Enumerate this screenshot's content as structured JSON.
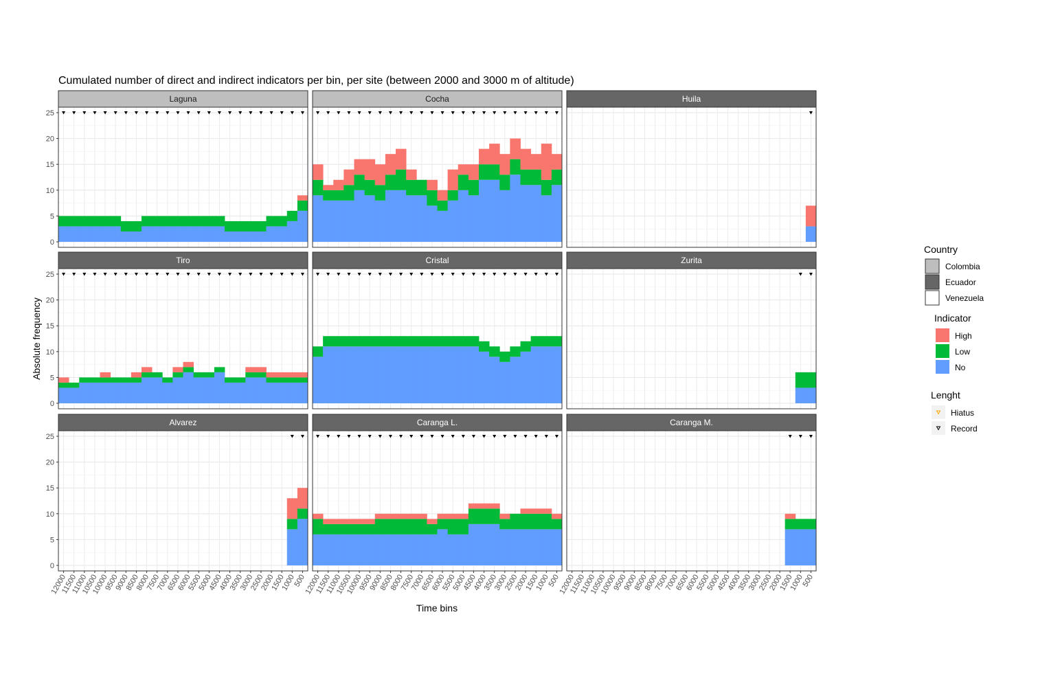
{
  "chart_data": {
    "type": "bar",
    "stacked": true,
    "facets_layout": "3x3",
    "title": "Cumulated number of direct and indirect indicators per bin, per site (between 2000 and 3000 m of altitude)",
    "xlabel": "Time bins",
    "ylabel": "Absolute frequency",
    "ylim": [
      0,
      25
    ],
    "yticks": [
      0,
      5,
      10,
      15,
      20,
      25
    ],
    "x_categories": [
      "12000",
      "11500",
      "11000",
      "10500",
      "10000",
      "9500",
      "9000",
      "8500",
      "8000",
      "7500",
      "7000",
      "6500",
      "6000",
      "5500",
      "5000",
      "4500",
      "4000",
      "3500",
      "3000",
      "2500",
      "2000",
      "1500",
      "1000",
      "500"
    ],
    "x_tick_labels": [
      "12000",
      "11500",
      "11000",
      "10500",
      "10000",
      "9500",
      "9000",
      "8500",
      "8000",
      "7500",
      "7000",
      "6500",
      "6000",
      "5500",
      "5000",
      "4500",
      "4000",
      "3500",
      "3000",
      "2500",
      "2000",
      "1500",
      "1000",
      "500"
    ],
    "grid": true,
    "legend_position": "right",
    "series_order": [
      "No",
      "Low",
      "High"
    ],
    "colors": {
      "High": "#F8766D",
      "Low": "#00BA38",
      "No": "#619CFF"
    },
    "country_colors": {
      "Colombia": "#bebebe",
      "Ecuador": "#666666",
      "Venezuela": "#ffffff"
    },
    "record_marker_y": 25,
    "facets": [
      {
        "name": "Laguna",
        "country": "Colombia",
        "No": [
          3,
          3,
          3,
          3,
          3,
          3,
          2,
          2,
          3,
          3,
          3,
          3,
          3,
          3,
          3,
          3,
          2,
          2,
          2,
          2,
          3,
          3,
          4,
          6
        ],
        "Low": [
          2,
          2,
          2,
          2,
          2,
          2,
          2,
          2,
          2,
          2,
          2,
          2,
          2,
          2,
          2,
          2,
          2,
          2,
          2,
          2,
          2,
          2,
          2,
          2
        ],
        "High": [
          0,
          0,
          0,
          0,
          0,
          0,
          0,
          0,
          0,
          0,
          0,
          0,
          0,
          0,
          0,
          0,
          0,
          0,
          0,
          0,
          0,
          0,
          0,
          1
        ],
        "record": [
          1,
          1,
          1,
          1,
          1,
          1,
          1,
          1,
          1,
          1,
          1,
          1,
          1,
          1,
          1,
          1,
          1,
          1,
          1,
          1,
          1,
          1,
          1,
          1
        ]
      },
      {
        "name": "Cocha",
        "country": "Colombia",
        "No": [
          9,
          8,
          8,
          8,
          10,
          9,
          8,
          10,
          10,
          9,
          9,
          7,
          6,
          8,
          10,
          9,
          12,
          12,
          10,
          13,
          11,
          11,
          9,
          11
        ],
        "Low": [
          3,
          2,
          2,
          3,
          3,
          3,
          3,
          3,
          4,
          3,
          3,
          3,
          2,
          2,
          3,
          3,
          3,
          3,
          3,
          3,
          3,
          3,
          3,
          3
        ],
        "High": [
          3,
          1,
          2,
          3,
          3,
          4,
          4,
          4,
          4,
          2,
          0,
          2,
          2,
          4,
          2,
          3,
          3,
          4,
          4,
          4,
          4,
          3,
          7,
          3
        ],
        "record": [
          1,
          1,
          1,
          1,
          1,
          1,
          1,
          1,
          1,
          1,
          1,
          1,
          1,
          1,
          1,
          1,
          1,
          1,
          1,
          1,
          1,
          1,
          1,
          1
        ]
      },
      {
        "name": "Huila",
        "country": "Ecuador",
        "No": [
          0,
          0,
          0,
          0,
          0,
          0,
          0,
          0,
          0,
          0,
          0,
          0,
          0,
          0,
          0,
          0,
          0,
          0,
          0,
          0,
          0,
          0,
          0,
          3
        ],
        "Low": [
          0,
          0,
          0,
          0,
          0,
          0,
          0,
          0,
          0,
          0,
          0,
          0,
          0,
          0,
          0,
          0,
          0,
          0,
          0,
          0,
          0,
          0,
          0,
          0
        ],
        "High": [
          0,
          0,
          0,
          0,
          0,
          0,
          0,
          0,
          0,
          0,
          0,
          0,
          0,
          0,
          0,
          0,
          0,
          0,
          0,
          0,
          0,
          0,
          0,
          4
        ],
        "record": [
          0,
          0,
          0,
          0,
          0,
          0,
          0,
          0,
          0,
          0,
          0,
          0,
          0,
          0,
          0,
          0,
          0,
          0,
          0,
          0,
          0,
          0,
          0,
          1
        ]
      },
      {
        "name": "Tiro",
        "country": "Ecuador",
        "No": [
          3,
          3,
          4,
          4,
          4,
          4,
          4,
          4,
          5,
          5,
          4,
          5,
          6,
          5,
          5,
          6,
          4,
          4,
          5,
          5,
          4,
          4,
          4,
          4
        ],
        "Low": [
          1,
          1,
          1,
          1,
          1,
          1,
          1,
          1,
          1,
          1,
          1,
          1,
          1,
          1,
          1,
          1,
          1,
          1,
          1,
          1,
          1,
          1,
          1,
          1
        ],
        "High": [
          1,
          0,
          0,
          0,
          1,
          0,
          0,
          1,
          1,
          0,
          0,
          1,
          1,
          0,
          0,
          0,
          0,
          0,
          1,
          1,
          1,
          1,
          1,
          1
        ],
        "record": [
          1,
          1,
          1,
          1,
          1,
          1,
          1,
          1,
          1,
          1,
          1,
          1,
          1,
          1,
          1,
          1,
          1,
          1,
          1,
          1,
          1,
          1,
          1,
          1
        ]
      },
      {
        "name": "Cristal",
        "country": "Ecuador",
        "No": [
          9,
          11,
          11,
          11,
          11,
          11,
          11,
          11,
          11,
          11,
          11,
          11,
          11,
          11,
          11,
          11,
          10,
          9,
          8,
          9,
          10,
          11,
          11,
          11
        ],
        "Low": [
          2,
          2,
          2,
          2,
          2,
          2,
          2,
          2,
          2,
          2,
          2,
          2,
          2,
          2,
          2,
          2,
          2,
          2,
          2,
          2,
          2,
          2,
          2,
          2
        ],
        "High": [
          0,
          0,
          0,
          0,
          0,
          0,
          0,
          0,
          0,
          0,
          0,
          0,
          0,
          0,
          0,
          0,
          0,
          0,
          0,
          0,
          0,
          0,
          0,
          0
        ],
        "record": [
          1,
          1,
          1,
          1,
          1,
          1,
          1,
          1,
          1,
          1,
          1,
          1,
          1,
          1,
          1,
          1,
          1,
          1,
          1,
          1,
          1,
          1,
          1,
          1
        ]
      },
      {
        "name": "Zurita",
        "country": "Ecuador",
        "No": [
          0,
          0,
          0,
          0,
          0,
          0,
          0,
          0,
          0,
          0,
          0,
          0,
          0,
          0,
          0,
          0,
          0,
          0,
          0,
          0,
          0,
          0,
          3,
          3
        ],
        "Low": [
          0,
          0,
          0,
          0,
          0,
          0,
          0,
          0,
          0,
          0,
          0,
          0,
          0,
          0,
          0,
          0,
          0,
          0,
          0,
          0,
          0,
          0,
          3,
          3
        ],
        "High": [
          0,
          0,
          0,
          0,
          0,
          0,
          0,
          0,
          0,
          0,
          0,
          0,
          0,
          0,
          0,
          0,
          0,
          0,
          0,
          0,
          0,
          0,
          0,
          0
        ],
        "record": [
          0,
          0,
          0,
          0,
          0,
          0,
          0,
          0,
          0,
          0,
          0,
          0,
          0,
          0,
          0,
          0,
          0,
          0,
          0,
          0,
          0,
          0,
          1,
          1
        ]
      },
      {
        "name": "Alvarez",
        "country": "Ecuador",
        "No": [
          0,
          0,
          0,
          0,
          0,
          0,
          0,
          0,
          0,
          0,
          0,
          0,
          0,
          0,
          0,
          0,
          0,
          0,
          0,
          0,
          0,
          0,
          7,
          9
        ],
        "Low": [
          0,
          0,
          0,
          0,
          0,
          0,
          0,
          0,
          0,
          0,
          0,
          0,
          0,
          0,
          0,
          0,
          0,
          0,
          0,
          0,
          0,
          0,
          2,
          2
        ],
        "High": [
          0,
          0,
          0,
          0,
          0,
          0,
          0,
          0,
          0,
          0,
          0,
          0,
          0,
          0,
          0,
          0,
          0,
          0,
          0,
          0,
          0,
          0,
          4,
          4
        ],
        "record": [
          0,
          0,
          0,
          0,
          0,
          0,
          0,
          0,
          0,
          0,
          0,
          0,
          0,
          0,
          0,
          0,
          0,
          0,
          0,
          0,
          0,
          0,
          1,
          1
        ]
      },
      {
        "name": "Caranga L.",
        "country": "Ecuador",
        "No": [
          6,
          6,
          6,
          6,
          6,
          6,
          6,
          6,
          6,
          6,
          6,
          6,
          7,
          6,
          6,
          8,
          8,
          8,
          7,
          7,
          7,
          7,
          7,
          7
        ],
        "Low": [
          3,
          2,
          2,
          2,
          2,
          2,
          3,
          3,
          3,
          3,
          3,
          2,
          2,
          3,
          3,
          3,
          3,
          3,
          2,
          3,
          3,
          3,
          3,
          2
        ],
        "High": [
          1,
          1,
          1,
          1,
          1,
          1,
          1,
          1,
          1,
          1,
          1,
          1,
          1,
          1,
          1,
          1,
          1,
          1,
          1,
          0,
          1,
          1,
          1,
          1
        ],
        "record": [
          1,
          1,
          1,
          1,
          1,
          1,
          1,
          1,
          1,
          1,
          1,
          1,
          1,
          1,
          1,
          1,
          1,
          1,
          1,
          1,
          1,
          1,
          1,
          1
        ]
      },
      {
        "name": "Caranga M.",
        "country": "Ecuador",
        "No": [
          0,
          0,
          0,
          0,
          0,
          0,
          0,
          0,
          0,
          0,
          0,
          0,
          0,
          0,
          0,
          0,
          0,
          0,
          0,
          0,
          0,
          7,
          7,
          7
        ],
        "Low": [
          0,
          0,
          0,
          0,
          0,
          0,
          0,
          0,
          0,
          0,
          0,
          0,
          0,
          0,
          0,
          0,
          0,
          0,
          0,
          0,
          0,
          2,
          2,
          2
        ],
        "High": [
          0,
          0,
          0,
          0,
          0,
          0,
          0,
          0,
          0,
          0,
          0,
          0,
          0,
          0,
          0,
          0,
          0,
          0,
          0,
          0,
          0,
          1,
          0,
          0
        ],
        "record": [
          0,
          0,
          0,
          0,
          0,
          0,
          0,
          0,
          0,
          0,
          0,
          0,
          0,
          0,
          0,
          0,
          0,
          0,
          0,
          0,
          0,
          1,
          1,
          1
        ]
      }
    ],
    "legends": [
      {
        "title": "Country",
        "kind": "fill-box",
        "items": [
          {
            "label": "Colombia",
            "color": "#bebebe"
          },
          {
            "label": "Ecuador",
            "color": "#666666"
          },
          {
            "label": "Venezuela",
            "color": "#ffffff"
          }
        ]
      },
      {
        "title": "Indicator",
        "kind": "fill",
        "items": [
          {
            "label": "High",
            "color": "#F8766D"
          },
          {
            "label": "Low",
            "color": "#00BA38"
          },
          {
            "label": "No",
            "color": "#619CFF"
          }
        ]
      },
      {
        "title": "Lenght",
        "kind": "marker",
        "items": [
          {
            "label": "Hiatus",
            "color": "#FFA500"
          },
          {
            "label": "Record",
            "color": "#000000"
          }
        ]
      }
    ]
  }
}
